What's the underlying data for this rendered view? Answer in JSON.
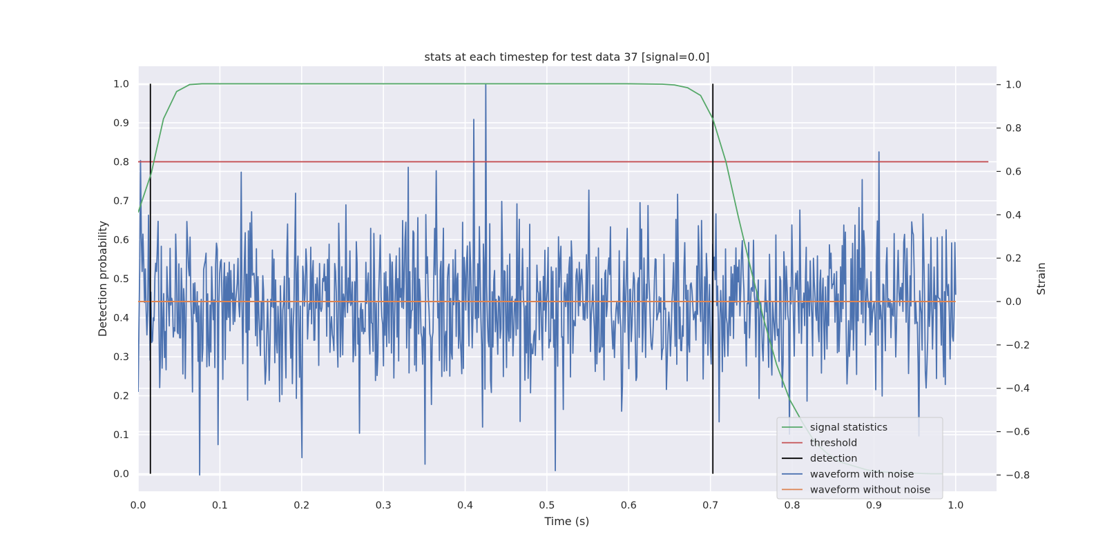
{
  "chart_data": {
    "type": "line",
    "title": "stats at each timestep for test data 37 [signal=0.0]",
    "xlabel": "Time (s)",
    "ylabel_left": "Detection probability",
    "ylabel_right": "Strain",
    "xlim": [
      0.0,
      1.05
    ],
    "ylim_left": [
      -0.045,
      1.045
    ],
    "ylim_right": [
      -0.875,
      1.085
    ],
    "x_ticks": [
      0.0,
      0.1,
      0.2,
      0.3,
      0.4,
      0.5,
      0.6,
      0.7,
      0.8,
      0.9,
      1.0
    ],
    "x_tick_labels": [
      "0.0",
      "0.1",
      "0.2",
      "0.3",
      "0.4",
      "0.5",
      "0.6",
      "0.7",
      "0.8",
      "0.9",
      "1.0"
    ],
    "y_left_ticks": [
      0.0,
      0.1,
      0.2,
      0.3,
      0.4,
      0.5,
      0.6,
      0.7,
      0.8,
      0.9,
      1.0
    ],
    "y_left_tick_labels": [
      "0.0",
      "0.1",
      "0.2",
      "0.3",
      "0.4",
      "0.5",
      "0.6",
      "0.7",
      "0.8",
      "0.9",
      "1.0"
    ],
    "y_right_ticks": [
      1.0,
      0.8,
      0.6,
      0.4,
      0.2,
      0.0,
      -0.2,
      -0.4,
      -0.6,
      -0.8
    ],
    "y_right_tick_labels": [
      "1.0",
      "0.8",
      "0.6",
      "0.4",
      "0.2",
      "0.0",
      "−0.2",
      "−0.4",
      "−0.6",
      "−0.8"
    ],
    "grid": true,
    "legend_position": "lower-right",
    "series": [
      {
        "name": "signal statistics",
        "axis": "left",
        "color": "#55a868",
        "x": [
          0.0,
          0.016,
          0.031,
          0.047,
          0.063,
          0.078,
          0.1,
          0.2,
          0.3,
          0.4,
          0.5,
          0.6,
          0.641,
          0.656,
          0.672,
          0.688,
          0.703,
          0.719,
          0.734,
          0.75,
          0.766,
          0.781,
          0.797,
          0.813,
          0.828,
          0.844,
          0.859,
          0.875,
          0.891,
          0.906,
          0.922,
          0.938,
          0.953,
          0.969,
          0.984
        ],
        "y": [
          0.67,
          0.77,
          0.91,
          0.98,
          0.998,
          1.0,
          1.0,
          1.0,
          1.0,
          1.0,
          1.0,
          1.0,
          0.999,
          0.997,
          0.99,
          0.97,
          0.91,
          0.8,
          0.66,
          0.52,
          0.39,
          0.28,
          0.19,
          0.13,
          0.08,
          0.05,
          0.03,
          0.02,
          0.01,
          0.005,
          0.003,
          0.002,
          0.001,
          0.0,
          0.0
        ]
      },
      {
        "name": "threshold",
        "axis": "left",
        "color": "#c44e52",
        "x": [
          0.0,
          1.04
        ],
        "y": [
          0.8,
          0.8
        ]
      },
      {
        "name": "detection",
        "axis": "left",
        "color": "#000000",
        "x_positions": [
          0.015,
          0.703
        ],
        "y_range": [
          0.0,
          1.0
        ]
      },
      {
        "name": "waveform with noise",
        "axis": "right",
        "color": "#4c72b0",
        "x_range": [
          0.0,
          1.0
        ],
        "num_points": 1024,
        "noise_std": 0.2,
        "seed": 37,
        "extremes": [
          {
            "x": 0.003,
            "y": 0.65
          },
          {
            "x": 0.075,
            "y": -0.8
          },
          {
            "x": 0.098,
            "y": -0.66
          },
          {
            "x": 0.2,
            "y": -0.72
          },
          {
            "x": 0.351,
            "y": -0.75
          },
          {
            "x": 0.411,
            "y": 0.84
          },
          {
            "x": 0.425,
            "y": 1.0
          },
          {
            "x": 0.51,
            "y": -0.78
          },
          {
            "x": 0.906,
            "y": 0.69
          },
          {
            "x": 0.955,
            "y": -0.62
          }
        ]
      },
      {
        "name": "waveform without noise",
        "axis": "right",
        "color": "#dd8452",
        "x": [
          0.0,
          1.0
        ],
        "y": [
          0.0,
          0.0
        ]
      }
    ]
  }
}
